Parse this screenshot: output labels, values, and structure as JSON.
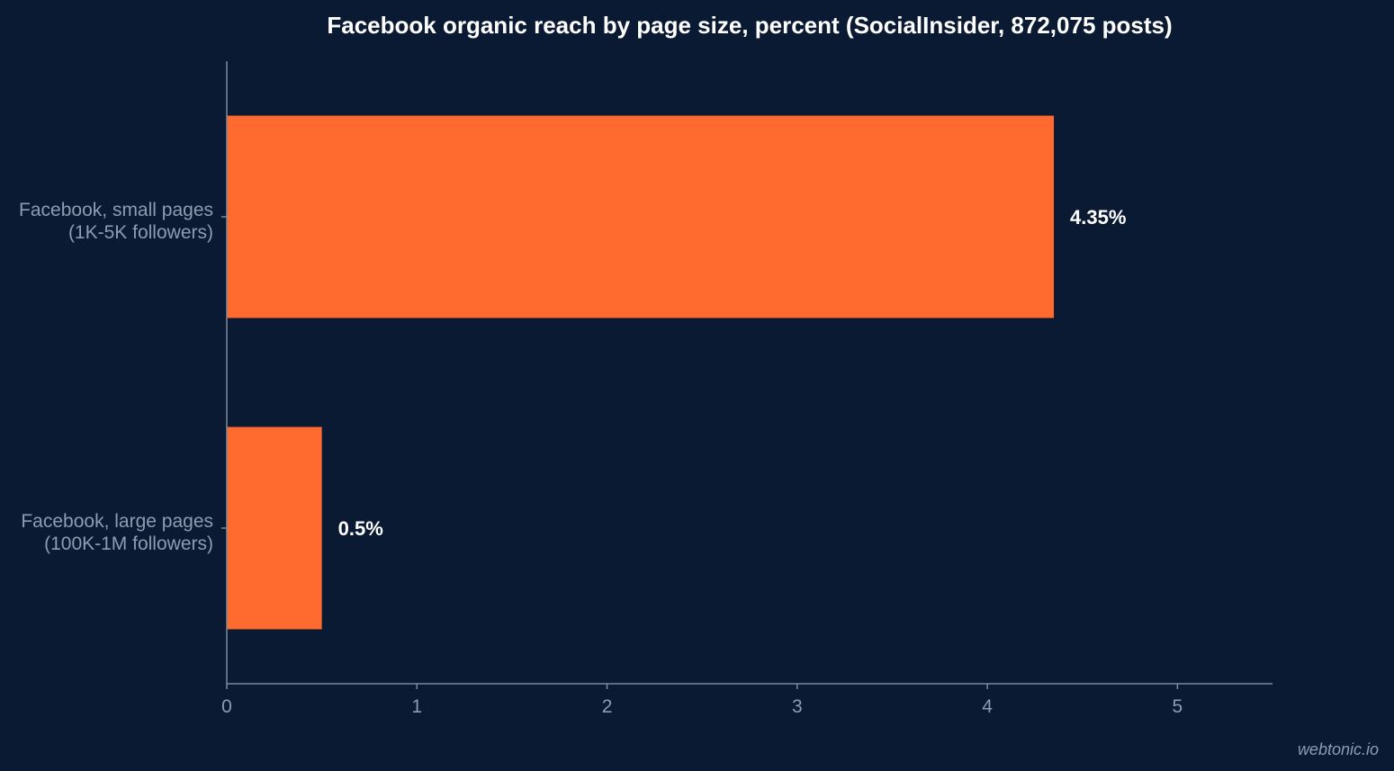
{
  "chart_data": {
    "type": "bar",
    "orientation": "horizontal",
    "title": "Facebook organic reach by page size, percent (SocialInsider, 872,075 posts)",
    "categories": [
      [
        "Facebook, small pages",
        "(1K-5K followers)"
      ],
      [
        "Facebook, large pages",
        "(100K-1M followers)"
      ]
    ],
    "values": [
      4.35,
      0.5
    ],
    "value_labels": [
      "4.35%",
      "0.5%"
    ],
    "xlim": [
      0,
      5.5
    ],
    "xticks": [
      0,
      1,
      2,
      3,
      4,
      5
    ],
    "xlabel": "",
    "ylabel": "",
    "grid": false,
    "colors": {
      "bar": "#ff6b2e",
      "background": "#0b1a33",
      "text": "#ffffff",
      "muted": "#8e9bb0"
    }
  },
  "watermark": "webtonic.io"
}
